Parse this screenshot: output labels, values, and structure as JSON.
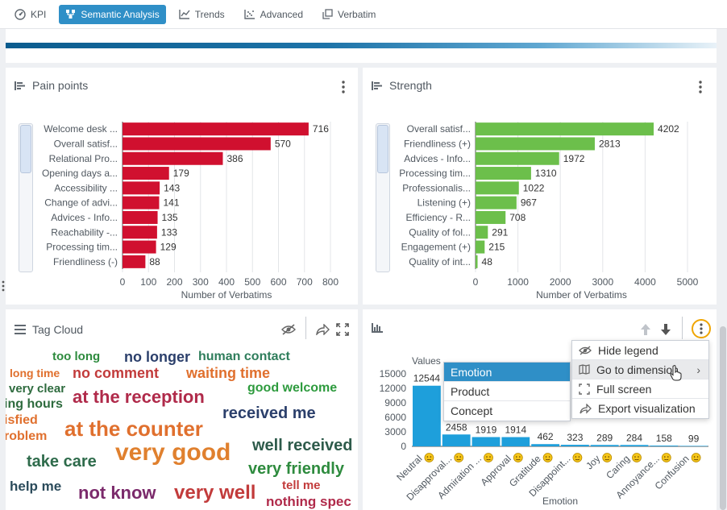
{
  "nav": {
    "tabs": [
      {
        "label": "KPI",
        "icon": "speedometer-icon",
        "active": false
      },
      {
        "label": "Semantic Analysis",
        "icon": "sitemap-icon",
        "active": true
      },
      {
        "label": "Trends",
        "icon": "line-chart-icon",
        "active": false
      },
      {
        "label": "Advanced",
        "icon": "scatter-icon",
        "active": false
      },
      {
        "label": "Verbatim",
        "icon": "copy-icon",
        "active": false
      }
    ],
    "active_color": "#2f8fc7"
  },
  "pain_points": {
    "title": "Pain points",
    "chart_data": {
      "type": "bar",
      "orientation": "horizontal",
      "categories": [
        "Welcome desk ...",
        "Overall satisf...",
        "Relational Pro...",
        "Opening days a...",
        "Accessibility ...",
        "Change of advi...",
        "Advices - Info...",
        "Reachability -...",
        "Processing tim...",
        "Friendliness (-)"
      ],
      "values": [
        716,
        570,
        386,
        179,
        143,
        141,
        135,
        133,
        129,
        88
      ],
      "xlabel": "Number of Verbatims",
      "xlim": [
        0,
        800
      ],
      "ticks": [
        0,
        100,
        200,
        300,
        400,
        500,
        600,
        700,
        800
      ],
      "grid": true,
      "color": "#d0102f"
    }
  },
  "strength": {
    "title": "Strength",
    "chart_data": {
      "type": "bar",
      "orientation": "horizontal",
      "categories": [
        "Overall satisf...",
        "Friendliness (+)",
        "Advices - Info...",
        "Processing tim...",
        "Professionalis...",
        "Listening (+)",
        "Efficiency - R...",
        "Quality of fol...",
        "Engagement (+)",
        "Quality of int..."
      ],
      "values": [
        4202,
        2813,
        1972,
        1310,
        1022,
        967,
        708,
        291,
        215,
        48
      ],
      "xlabel": "Number of Verbatims",
      "xlim": [
        0,
        5000
      ],
      "ticks": [
        0,
        1000,
        2000,
        3000,
        4000,
        5000
      ],
      "grid": true,
      "color": "#6cbf4b"
    }
  },
  "tag_cloud": {
    "title": "Tag Cloud",
    "tags": [
      {
        "text": "too long",
        "color": "#2e8b3e"
      },
      {
        "text": "no longer",
        "color": "#2b3f6b"
      },
      {
        "text": "human contact",
        "color": "#2e7d5b"
      },
      {
        "text": "long time",
        "color": "#e0702e"
      },
      {
        "text": "no comment",
        "color": "#c23b3b"
      },
      {
        "text": "waiting time",
        "color": "#e0702e"
      },
      {
        "text": "very clear",
        "color": "#2e6b3e"
      },
      {
        "text": "good welcome",
        "color": "#2e9b3e"
      },
      {
        "text": "at the reception",
        "color": "#b02a4a"
      },
      {
        "text": "ing hours",
        "color": "#2e6b3e"
      },
      {
        "text": "isfied",
        "color": "#e0702e"
      },
      {
        "text": "received me",
        "color": "#2b3f6b"
      },
      {
        "text": "roblem",
        "color": "#e0702e"
      },
      {
        "text": "at the counter",
        "color": "#e0702e"
      },
      {
        "text": "well received",
        "color": "#2e5b4b"
      },
      {
        "text": "very good",
        "color": "#e0802e"
      },
      {
        "text": "take care",
        "color": "#2e6b4b"
      },
      {
        "text": "very friendly",
        "color": "#2e8b3e"
      },
      {
        "text": "help me",
        "color": "#2b4b5b"
      },
      {
        "text": "not know",
        "color": "#7b2a6b"
      },
      {
        "text": "very well",
        "color": "#c23b3b"
      },
      {
        "text": "tell me",
        "color": "#c23b3b"
      },
      {
        "text": "nothing spec",
        "color": "#b02a4a"
      }
    ]
  },
  "emotion_chart": {
    "chart_data": {
      "type": "bar",
      "categories": [
        "Neutral",
        "Disapproval...",
        "Admiration ...",
        "Approval",
        "Gratitude",
        "Disappoint...",
        "Joy",
        "Caring",
        "Annoyance...",
        "Confusion"
      ],
      "values": [
        12544,
        2458,
        1919,
        1914,
        462,
        323,
        289,
        284,
        158,
        99
      ],
      "xlabel": "Emotion",
      "ylabel": "Values",
      "ylim": [
        0,
        15000
      ],
      "ticks": [
        0,
        3000,
        6000,
        9000,
        12000,
        15000
      ],
      "color": "#1e9fdb"
    },
    "dimension_menu": {
      "items": [
        {
          "label": "Emotion",
          "selected": true
        },
        {
          "label": "Product",
          "selected": false
        },
        {
          "label": "Concept",
          "selected": false
        }
      ]
    },
    "context_menu": {
      "items": [
        {
          "label": "Hide legend",
          "icon": "eye-slash-icon"
        },
        {
          "label": "Go to dimension",
          "icon": "map-icon",
          "submenu": true
        },
        {
          "label": "Full screen",
          "icon": "expand-icon"
        },
        {
          "label": "Export visualization",
          "icon": "share-icon"
        }
      ]
    },
    "highlight_color": "#f0a500"
  }
}
